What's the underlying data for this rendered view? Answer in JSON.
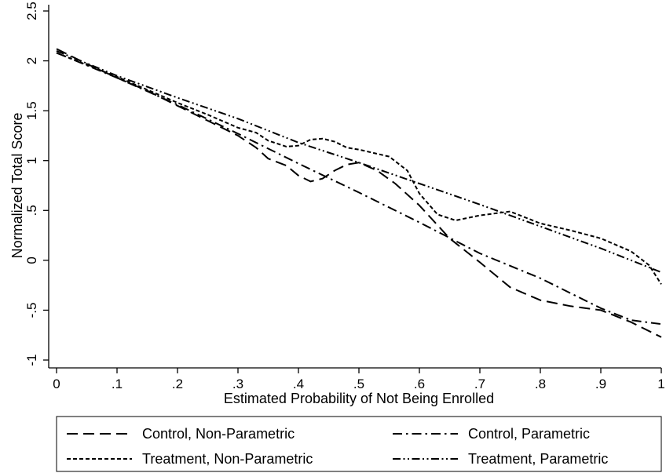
{
  "chart_data": {
    "type": "line",
    "title": "",
    "xlabel": "Estimated Probability of Not Being Enrolled",
    "ylabel": "Normalized Total Score",
    "xlim": [
      0,
      1
    ],
    "ylim": [
      -1,
      2.5
    ],
    "x_ticks": [
      {
        "value": 0,
        "label": "0"
      },
      {
        "value": 0.1,
        "label": ".1"
      },
      {
        "value": 0.2,
        "label": ".2"
      },
      {
        "value": 0.3,
        "label": ".3"
      },
      {
        "value": 0.4,
        "label": ".4"
      },
      {
        "value": 0.5,
        "label": ".5"
      },
      {
        "value": 0.6,
        "label": ".6"
      },
      {
        "value": 0.7,
        "label": ".7"
      },
      {
        "value": 0.8,
        "label": ".8"
      },
      {
        "value": 0.9,
        "label": ".9"
      },
      {
        "value": 1,
        "label": "1"
      }
    ],
    "y_ticks": [
      {
        "value": -1,
        "label": "-1"
      },
      {
        "value": -0.5,
        "label": "-.5"
      },
      {
        "value": 0,
        "label": "0"
      },
      {
        "value": 0.5,
        "label": ".5"
      },
      {
        "value": 1,
        "label": "1"
      },
      {
        "value": 1.5,
        "label": "1.5"
      },
      {
        "value": 2,
        "label": "2"
      },
      {
        "value": 2.5,
        "label": "2.5"
      }
    ],
    "grid": false,
    "legend_position": "bottom",
    "series": [
      {
        "name": "Control, Non-Parametric",
        "dash": "long-dash",
        "x": [
          0,
          0.05,
          0.1,
          0.15,
          0.2,
          0.25,
          0.3,
          0.33,
          0.35,
          0.38,
          0.4,
          0.42,
          0.44,
          0.46,
          0.48,
          0.5,
          0.53,
          0.56,
          0.6,
          0.65,
          0.7,
          0.75,
          0.8,
          0.85,
          0.9,
          0.95,
          1.0
        ],
        "y": [
          2.12,
          1.97,
          1.83,
          1.7,
          1.55,
          1.4,
          1.25,
          1.13,
          1.02,
          0.95,
          0.85,
          0.79,
          0.82,
          0.9,
          0.96,
          0.98,
          0.9,
          0.77,
          0.55,
          0.22,
          -0.02,
          -0.27,
          -0.4,
          -0.46,
          -0.5,
          -0.62,
          -0.77
        ]
      },
      {
        "name": "Control, Parametric",
        "dash": "dash-dot",
        "x": [
          0,
          0.1,
          0.2,
          0.3,
          0.4,
          0.5,
          0.6,
          0.7,
          0.8,
          0.9,
          0.95,
          1.0
        ],
        "y": [
          2.08,
          1.83,
          1.56,
          1.27,
          0.97,
          0.68,
          0.38,
          0.07,
          -0.18,
          -0.48,
          -0.6,
          -0.64
        ]
      },
      {
        "name": "Treatment, Non-Parametric",
        "dash": "short-dash",
        "x": [
          0,
          0.05,
          0.1,
          0.15,
          0.2,
          0.25,
          0.3,
          0.33,
          0.35,
          0.38,
          0.4,
          0.42,
          0.44,
          0.46,
          0.48,
          0.5,
          0.55,
          0.58,
          0.6,
          0.63,
          0.66,
          0.7,
          0.75,
          0.8,
          0.85,
          0.9,
          0.95,
          0.98,
          1.0
        ],
        "y": [
          2.08,
          1.96,
          1.84,
          1.71,
          1.58,
          1.46,
          1.33,
          1.28,
          1.2,
          1.14,
          1.15,
          1.21,
          1.22,
          1.19,
          1.13,
          1.11,
          1.04,
          0.9,
          0.67,
          0.46,
          0.4,
          0.45,
          0.49,
          0.37,
          0.3,
          0.22,
          0.09,
          -0.05,
          -0.24
        ]
      },
      {
        "name": "Treatment, Parametric",
        "dash": "dash-dot-dot",
        "x": [
          0,
          0.1,
          0.2,
          0.3,
          0.4,
          0.5,
          0.6,
          0.7,
          0.8,
          0.9,
          1.0
        ],
        "y": [
          2.1,
          1.85,
          1.63,
          1.42,
          1.18,
          0.98,
          0.77,
          0.56,
          0.34,
          0.12,
          -0.12
        ]
      }
    ]
  }
}
